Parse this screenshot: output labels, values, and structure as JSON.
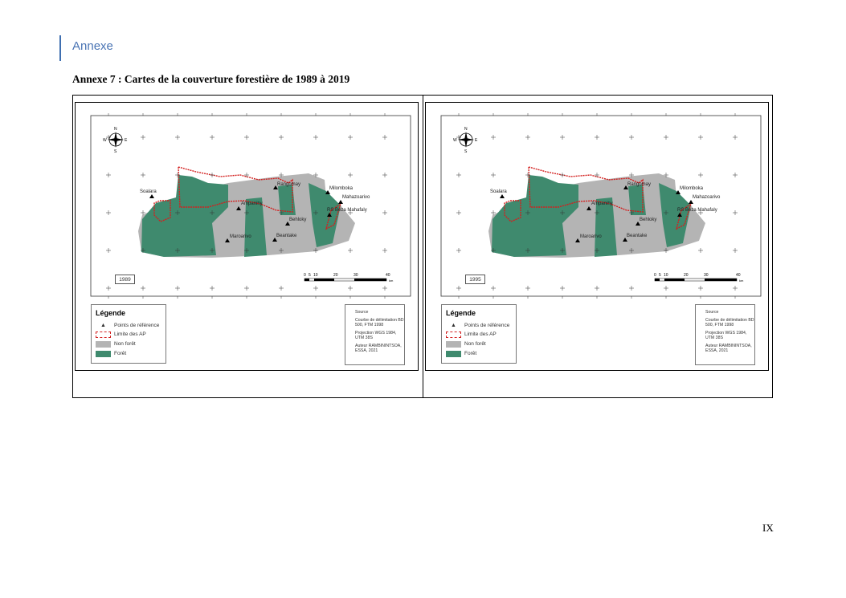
{
  "header": {
    "section": "Annexe"
  },
  "title": "Annexe 7 : Cartes de la couverture forestière de 1989 à 2019",
  "colors": {
    "forest": "#3f8a6e",
    "non_forest": "#b4b4b4",
    "ap_limit": "#d3201f",
    "accent": "#4a74b4"
  },
  "maps": [
    {
      "year": "1989"
    },
    {
      "year": "1995"
    }
  ],
  "map_common": {
    "places": [
      "Soalara",
      "Rangomay",
      "Milomboka",
      "Mahazoarivo",
      "RS Beza Mahafaly",
      "Ampanihy",
      "Behloky",
      "Maroarivo",
      "Beantake"
    ],
    "compass": {
      "n": "N",
      "s": "S",
      "e": "E",
      "w": "W"
    },
    "scale": {
      "ticks": [
        "0",
        "5",
        "10",
        "20",
        "30",
        "40"
      ],
      "unit": "km"
    },
    "legend": {
      "title": "Légende",
      "items": [
        "Points de référence",
        "Limite des AP",
        "Non forêt",
        "Forêt"
      ]
    },
    "source": {
      "label": "Source",
      "lines": [
        "Courbe de délimitation BD 500, FTM 1998",
        "Projection WGS 1984, UTM 38S",
        "Auteur RAMBININTSOA, ESSA, 2021"
      ]
    }
  },
  "page_number": "IX"
}
